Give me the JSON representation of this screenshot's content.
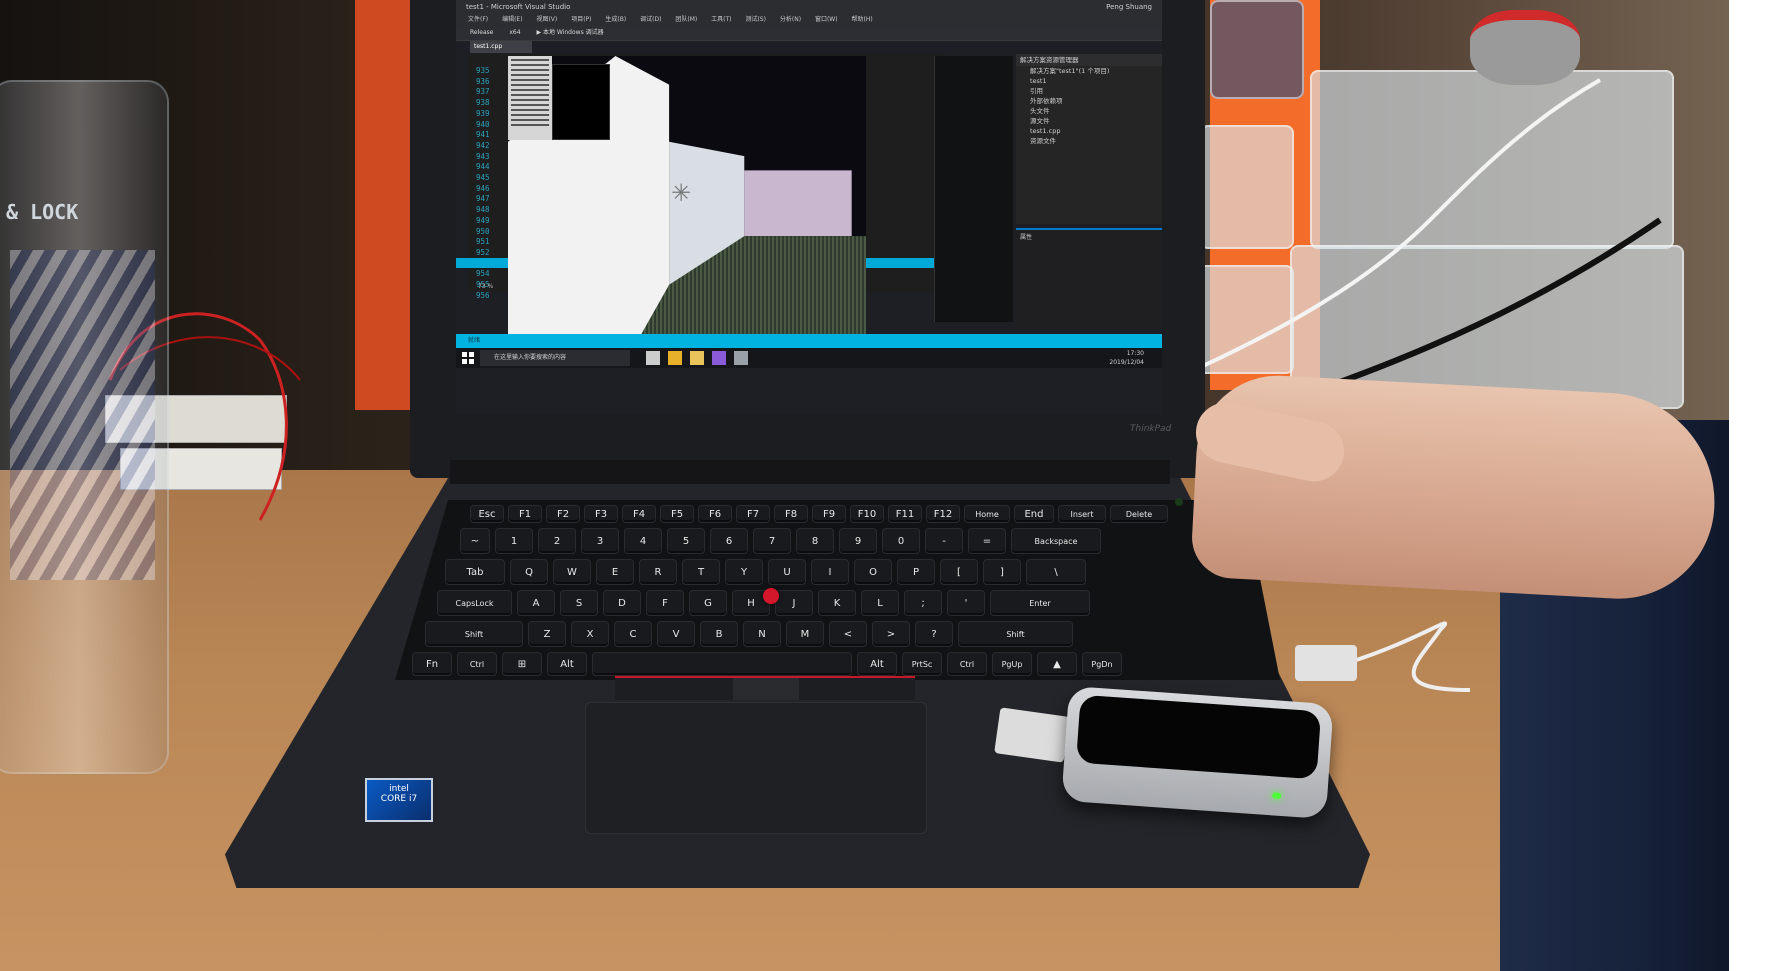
{
  "laptop": {
    "brand": "ThinkPad",
    "intel_badge": "intel\nCORE i7"
  },
  "ide": {
    "window_title": "test1 - Microsoft Visual Studio",
    "user": "Peng Shuang",
    "menu_items": [
      "文件(F)",
      "编辑(E)",
      "视图(V)",
      "项目(P)",
      "生成(B)",
      "调试(D)",
      "团队(M)",
      "工具(T)",
      "测试(S)",
      "分析(N)",
      "窗口(W)",
      "帮助(H)"
    ],
    "toolbar": {
      "config": "Release",
      "platform": "x64",
      "run_label": "▶ 本地 Windows 调试器"
    },
    "tab": "test1.cpp",
    "line_numbers": [
      "935",
      "936",
      "937",
      "938",
      "939",
      "940",
      "941",
      "942",
      "943",
      "944",
      "945",
      "946",
      "947",
      "948",
      "949",
      "950",
      "951",
      "952",
      "953",
      "954",
      "955",
      "956"
    ],
    "zoom": "73 %",
    "solution_explorer": {
      "title": "解决方案资源管理器",
      "items": [
        "解决方案\"test1\"(1 个项目)",
        "test1",
        "引用",
        "外部依赖项",
        "头文件",
        "源文件",
        "test1.cpp",
        "资源文件"
      ]
    },
    "props_title": "属性",
    "status": "就绪"
  },
  "taskbar": {
    "search_placeholder": "在这里输入你要搜索的内容",
    "time": "17:30",
    "date": "2019/12/04"
  },
  "keyboard": {
    "row1": [
      "Esc",
      "F1",
      "F2",
      "F3",
      "F4",
      "F5",
      "F6",
      "F7",
      "F8",
      "F9",
      "F10",
      "F11",
      "F12",
      "Home",
      "End",
      "Insert",
      "Delete"
    ],
    "row2": [
      "~",
      "1",
      "2",
      "3",
      "4",
      "5",
      "6",
      "7",
      "8",
      "9",
      "0",
      "-",
      "=",
      "Backspace"
    ],
    "row3": [
      "Tab",
      "Q",
      "W",
      "E",
      "R",
      "T",
      "Y",
      "U",
      "I",
      "O",
      "P",
      "[",
      "]",
      "\\"
    ],
    "row4": [
      "CapsLock",
      "A",
      "S",
      "D",
      "F",
      "G",
      "H",
      "J",
      "K",
      "L",
      ";",
      "'",
      "Enter"
    ],
    "row5": [
      "Shift",
      "Z",
      "X",
      "C",
      "V",
      "B",
      "N",
      "M",
      "<",
      ">",
      "?",
      "Shift"
    ],
    "row6": [
      "Fn",
      "Ctrl",
      "⊞",
      "Alt",
      "",
      "Alt",
      "PrtSc",
      "Ctrl",
      "PgUp",
      "▲",
      "PgDn"
    ]
  },
  "colors": {
    "accent": "#00b3e0",
    "trackpoint": "#d4172b",
    "leap_led": "#4dff38"
  }
}
